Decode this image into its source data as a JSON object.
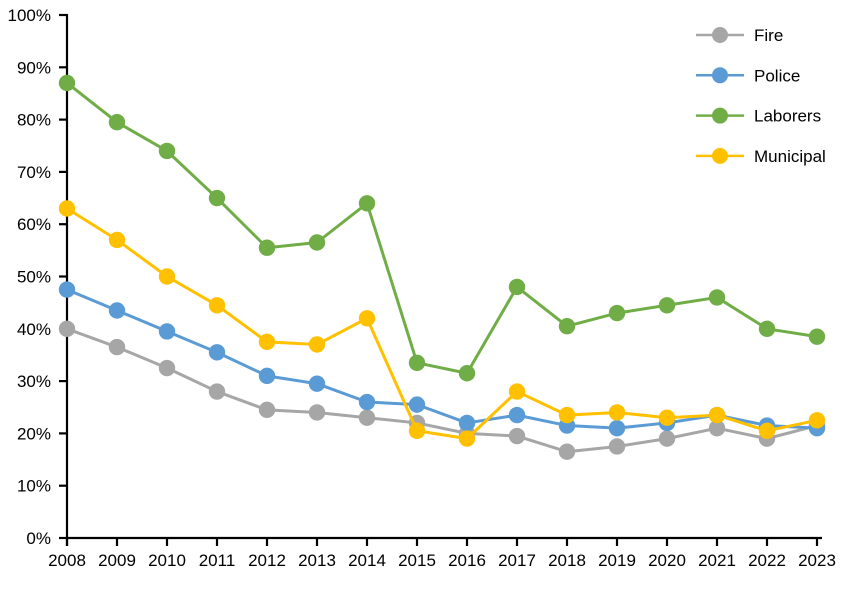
{
  "chart_data": {
    "type": "line",
    "title": "",
    "xlabel": "",
    "ylabel": "",
    "grid": false,
    "background_color": "#FFFFFF",
    "axis_color": "#000000",
    "legend_position": "top-right",
    "ylim": [
      0,
      100
    ],
    "y_tick_step": 10,
    "y_tick_labels": [
      "0%",
      "10%",
      "20%",
      "30%",
      "40%",
      "50%",
      "60%",
      "70%",
      "80%",
      "90%",
      "100%"
    ],
    "x": [
      2008,
      2009,
      2010,
      2011,
      2012,
      2013,
      2014,
      2015,
      2016,
      2017,
      2018,
      2019,
      2020,
      2021,
      2022,
      2023
    ],
    "series": [
      {
        "name": "Fire",
        "color": "#A6A6A6",
        "marker": "circle",
        "values": [
          40,
          36.5,
          32.5,
          28,
          24.5,
          24,
          23,
          22,
          20,
          19.5,
          16.5,
          17.5,
          19,
          21,
          19,
          21.5
        ]
      },
      {
        "name": "Police",
        "color": "#5B9BD5",
        "marker": "circle",
        "values": [
          47.5,
          43.5,
          39.5,
          35.5,
          31,
          29.5,
          26,
          25.5,
          22,
          23.5,
          21.5,
          21,
          22,
          23.5,
          21.5,
          21
        ]
      },
      {
        "name": "Laborers",
        "color": "#70AD47",
        "marker": "circle",
        "values": [
          87,
          79.5,
          74,
          65,
          55.5,
          56.5,
          64,
          33.5,
          31.5,
          48,
          40.5,
          43,
          44.5,
          46,
          40,
          38.5
        ]
      },
      {
        "name": "Municipal",
        "color": "#FFC000",
        "marker": "circle",
        "values": [
          63,
          57,
          50,
          44.5,
          37.5,
          37,
          42,
          20.5,
          19,
          28,
          23.5,
          24,
          23,
          23.5,
          20.5,
          22.5
        ]
      }
    ]
  }
}
